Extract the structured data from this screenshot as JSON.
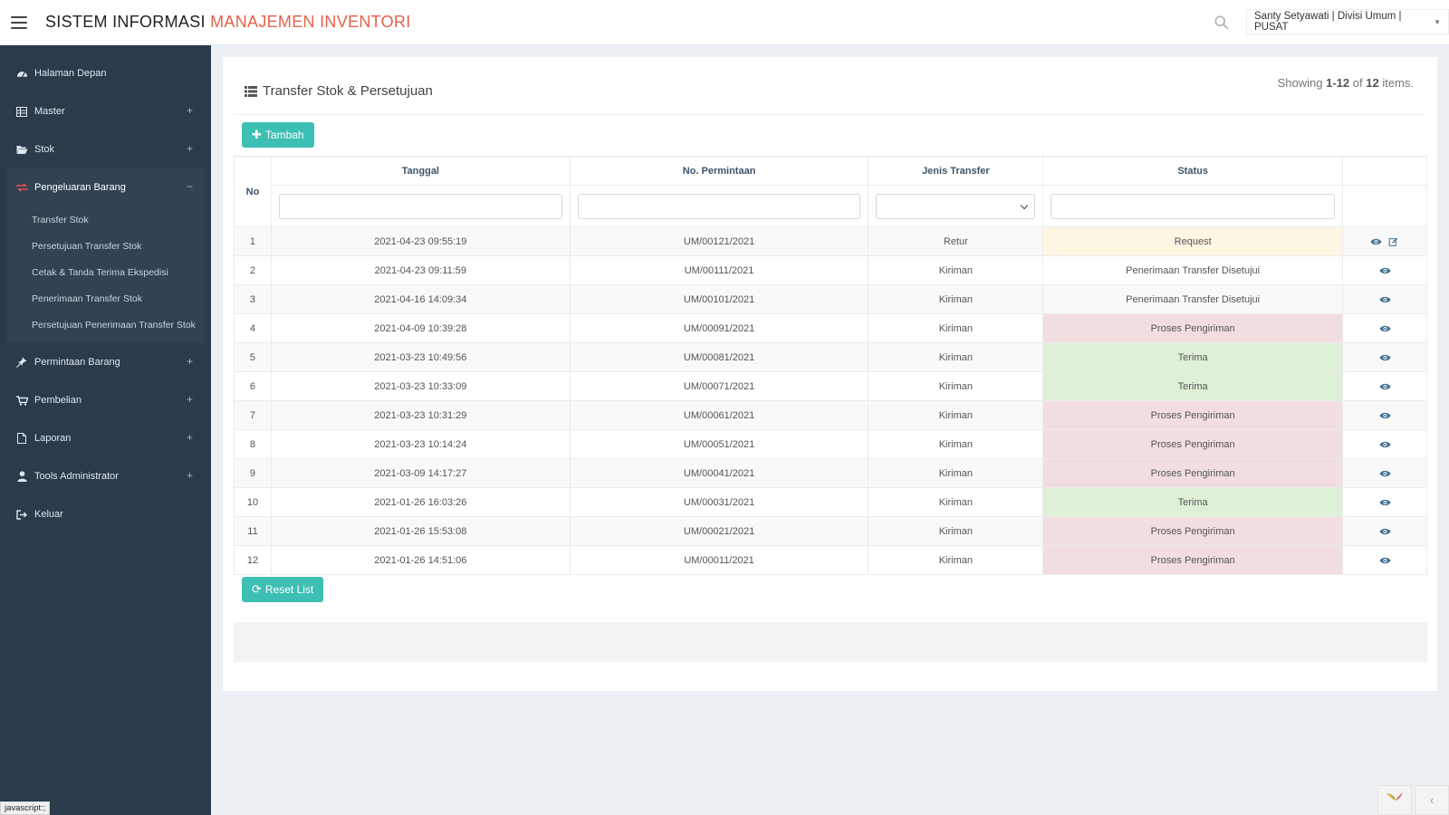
{
  "app": {
    "brand_part1": "SISTEM INFORMASI",
    "brand_part2": "MANAJEMEN INVENTORI",
    "user_label": "Santy Setyawati | Divisi Umum | PUSAT"
  },
  "sidebar": {
    "items": [
      {
        "label": "Halaman Depan",
        "icon": "dashboard-icon"
      },
      {
        "label": "Master",
        "icon": "table-icon",
        "toggle": "+"
      },
      {
        "label": "Stok",
        "icon": "folder-open-icon",
        "toggle": "+"
      },
      {
        "label": "Pengeluaran Barang",
        "icon": "exchange-icon",
        "toggle": "−"
      },
      {
        "label": "Permintaan Barang",
        "icon": "thumbtack-icon",
        "toggle": "+"
      },
      {
        "label": "Pembelian",
        "icon": "cart-icon",
        "toggle": "+"
      },
      {
        "label": "Laporan",
        "icon": "file-icon",
        "toggle": "+"
      },
      {
        "label": "Tools Administrator",
        "icon": "user-icon",
        "toggle": "+"
      },
      {
        "label": "Keluar",
        "icon": "sign-out-icon"
      }
    ],
    "subitems": [
      "Transfer Stok",
      "Persetujuan Transfer Stok",
      "Cetak & Tanda Terima Ekspedisi",
      "Penerimaan Transfer Stok",
      "Persetujuan Penerimaan Transfer Stok"
    ]
  },
  "page": {
    "title": "Transfer Stok & Persetujuan",
    "summary_prefix": "Showing",
    "summary_range": "1-12",
    "summary_of": "of",
    "summary_total": "12",
    "summary_suffix": "items.",
    "add_button": "Tambah",
    "reset_button": "Reset List"
  },
  "table": {
    "columns": {
      "no": "No",
      "tanggal": "Tanggal",
      "no_permintaan": "No. Permintaan",
      "jenis": "Jenis Transfer",
      "status": "Status"
    },
    "rows": [
      {
        "no": "1",
        "tanggal": "2021-04-23 09:55:19",
        "no_permintaan": "UM/00121/2021",
        "jenis": "Retur",
        "status": "Request",
        "state": "warning"
      },
      {
        "no": "2",
        "tanggal": "2021-04-23 09:11:59",
        "no_permintaan": "UM/00111/2021",
        "jenis": "Kiriman",
        "status": "Penerimaan Transfer Disetujui",
        "state": "none"
      },
      {
        "no": "3",
        "tanggal": "2021-04-16 14:09:34",
        "no_permintaan": "UM/00101/2021",
        "jenis": "Kiriman",
        "status": "Penerimaan Transfer Disetujui",
        "state": "none"
      },
      {
        "no": "4",
        "tanggal": "2021-04-09 10:39:28",
        "no_permintaan": "UM/00091/2021",
        "jenis": "Kiriman",
        "status": "Proses Pengiriman",
        "state": "danger"
      },
      {
        "no": "5",
        "tanggal": "2021-03-23 10:49:56",
        "no_permintaan": "UM/00081/2021",
        "jenis": "Kiriman",
        "status": "Terima",
        "state": "success"
      },
      {
        "no": "6",
        "tanggal": "2021-03-23 10:33:09",
        "no_permintaan": "UM/00071/2021",
        "jenis": "Kiriman",
        "status": "Terima",
        "state": "success"
      },
      {
        "no": "7",
        "tanggal": "2021-03-23 10:31:29",
        "no_permintaan": "UM/00061/2021",
        "jenis": "Kiriman",
        "status": "Proses Pengiriman",
        "state": "danger"
      },
      {
        "no": "8",
        "tanggal": "2021-03-23 10:14:24",
        "no_permintaan": "UM/00051/2021",
        "jenis": "Kiriman",
        "status": "Proses Pengiriman",
        "state": "danger"
      },
      {
        "no": "9",
        "tanggal": "2021-03-09 14:17:27",
        "no_permintaan": "UM/00041/2021",
        "jenis": "Kiriman",
        "status": "Proses Pengiriman",
        "state": "danger"
      },
      {
        "no": "10",
        "tanggal": "2021-01-26 16:03:26",
        "no_permintaan": "UM/00031/2021",
        "jenis": "Kiriman",
        "status": "Terima",
        "state": "success"
      },
      {
        "no": "11",
        "tanggal": "2021-01-26 15:53:08",
        "no_permintaan": "UM/00021/2021",
        "jenis": "Kiriman",
        "status": "Proses Pengiriman",
        "state": "danger"
      },
      {
        "no": "12",
        "tanggal": "2021-01-26 14:51:06",
        "no_permintaan": "UM/00011/2021",
        "jenis": "Kiriman",
        "status": "Proses Pengiriman",
        "state": "danger"
      }
    ]
  },
  "statusbar": {
    "hint": "javascript:;"
  },
  "colors": {
    "accent": "#e3624b",
    "teal": "#3ebfb4",
    "sidebar": "#2b3b4c",
    "warning_bg": "#fcf6e3",
    "danger_bg": "#f2dede",
    "success_bg": "#dff0d8"
  }
}
